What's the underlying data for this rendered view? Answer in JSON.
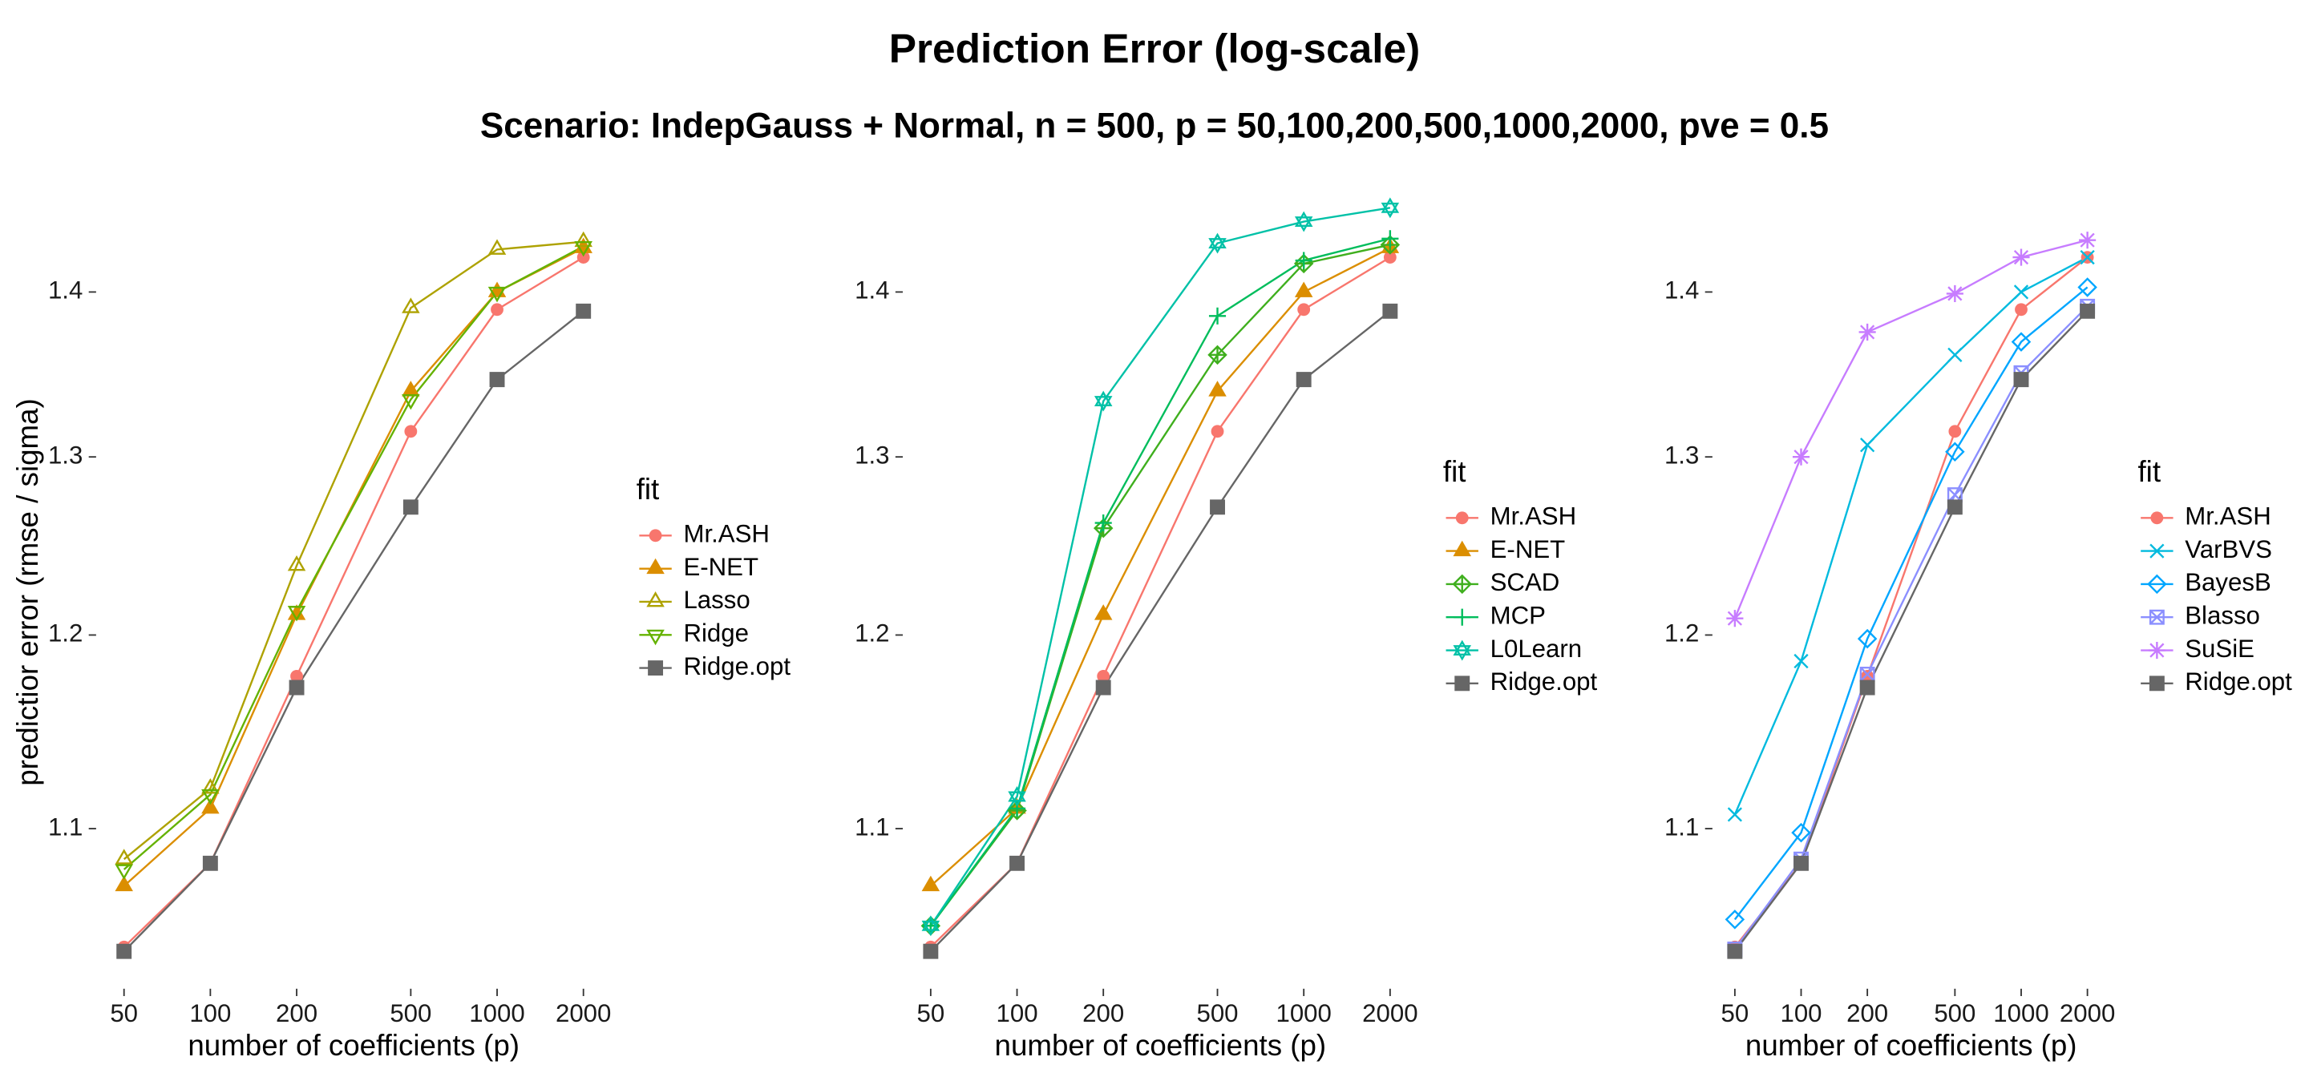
{
  "title": "Prediction Error (log-scale)",
  "subtitle": "Scenario: IndepGauss + Normal, n = 500, p = 50,100,200,500,1000,2000, pve = 0.5",
  "chart_data": [
    {
      "type": "line",
      "log_x": true,
      "log_y": true,
      "xlabel": "number of coefficients (p)",
      "ylabel": "predictior error (rmse / sigma)",
      "legend_title": "fit",
      "x": [
        50,
        100,
        200,
        500,
        1000,
        2000
      ],
      "xlim": [
        41.4,
        2415
      ],
      "xticks": [
        50,
        100,
        200,
        500,
        1000,
        2000
      ],
      "ylim": [
        1.025,
        1.46
      ],
      "yticks": [
        1.1,
        1.2,
        1.3,
        1.4
      ],
      "series": [
        {
          "name": "Mr.ASH",
          "color": "#F8766D",
          "marker": "circle",
          "values": [
            1.043,
            1.083,
            1.178,
            1.315,
            1.389,
            1.422
          ]
        },
        {
          "name": "E-NET",
          "color": "#DB8E00",
          "marker": "triangle",
          "values": [
            1.072,
            1.11,
            1.211,
            1.339,
            1.4,
            1.428
          ]
        },
        {
          "name": "Lasso",
          "color": "#AEA200",
          "marker": "triangle-open",
          "values": [
            1.085,
            1.12,
            1.238,
            1.39,
            1.427,
            1.432
          ]
        },
        {
          "name": "Ridge",
          "color": "#64B200",
          "marker": "triangle-down-open",
          "values": [
            1.08,
            1.117,
            1.213,
            1.334,
            1.4,
            1.429
          ]
        },
        {
          "name": "Ridge.opt",
          "color": "#666666",
          "marker": "square",
          "values": [
            1.041,
            1.083,
            1.172,
            1.271,
            1.346,
            1.388
          ]
        }
      ]
    },
    {
      "type": "line",
      "log_x": true,
      "log_y": true,
      "xlabel": "number of coefficients (p)",
      "legend_title": "fit",
      "x": [
        50,
        100,
        200,
        500,
        1000,
        2000
      ],
      "xlim": [
        41.4,
        2415
      ],
      "xticks": [
        50,
        100,
        200,
        500,
        1000,
        2000
      ],
      "ylim": [
        1.025,
        1.46
      ],
      "yticks": [
        1.1,
        1.2,
        1.3,
        1.4
      ],
      "series": [
        {
          "name": "Mr.ASH",
          "color": "#F8766D",
          "marker": "circle",
          "values": [
            1.043,
            1.083,
            1.178,
            1.315,
            1.389,
            1.422
          ]
        },
        {
          "name": "E-NET",
          "color": "#DB8E00",
          "marker": "triangle",
          "values": [
            1.072,
            1.11,
            1.211,
            1.339,
            1.4,
            1.428
          ]
        },
        {
          "name": "SCAD",
          "color": "#3FAF1E",
          "marker": "diamond-plus",
          "values": [
            1.053,
            1.109,
            1.259,
            1.361,
            1.418,
            1.43
          ]
        },
        {
          "name": "MCP",
          "color": "#00BD5C",
          "marker": "plus",
          "values": [
            1.053,
            1.11,
            1.262,
            1.385,
            1.42,
            1.434
          ]
        },
        {
          "name": "L0Learn",
          "color": "#00C1A7",
          "marker": "star",
          "values": [
            1.053,
            1.116,
            1.333,
            1.431,
            1.445,
            1.454
          ]
        },
        {
          "name": "Ridge.opt",
          "color": "#666666",
          "marker": "square",
          "values": [
            1.041,
            1.083,
            1.172,
            1.271,
            1.346,
            1.388
          ]
        }
      ]
    },
    {
      "type": "line",
      "log_x": true,
      "log_y": true,
      "xlabel": "number of coefficients (p)",
      "legend_title": "fit",
      "x": [
        50,
        100,
        200,
        500,
        1000,
        2000
      ],
      "xlim": [
        41.4,
        2415
      ],
      "xticks": [
        50,
        100,
        200,
        500,
        1000,
        2000
      ],
      "ylim": [
        1.025,
        1.46
      ],
      "yticks": [
        1.1,
        1.2,
        1.3,
        1.4
      ],
      "series": [
        {
          "name": "Mr.ASH",
          "color": "#F8766D",
          "marker": "circle",
          "values": [
            1.043,
            1.083,
            1.178,
            1.315,
            1.389,
            1.422
          ]
        },
        {
          "name": "VarBVS",
          "color": "#00BADE",
          "marker": "x",
          "values": [
            1.107,
            1.186,
            1.307,
            1.361,
            1.4,
            1.422
          ]
        },
        {
          "name": "BayesB",
          "color": "#00A6FF",
          "marker": "diamond-open",
          "values": [
            1.056,
            1.098,
            1.198,
            1.303,
            1.369,
            1.403
          ]
        },
        {
          "name": "Blasso",
          "color": "#8B8FFF",
          "marker": "square-x",
          "values": [
            1.042,
            1.085,
            1.179,
            1.278,
            1.35,
            1.391
          ]
        },
        {
          "name": "SuSiE",
          "color": "#C77CFF",
          "marker": "asterisk",
          "values": [
            1.209,
            1.3,
            1.375,
            1.399,
            1.422,
            1.433
          ]
        },
        {
          "name": "Ridge.opt",
          "color": "#666666",
          "marker": "square",
          "values": [
            1.041,
            1.083,
            1.172,
            1.271,
            1.346,
            1.388
          ]
        }
      ]
    }
  ]
}
